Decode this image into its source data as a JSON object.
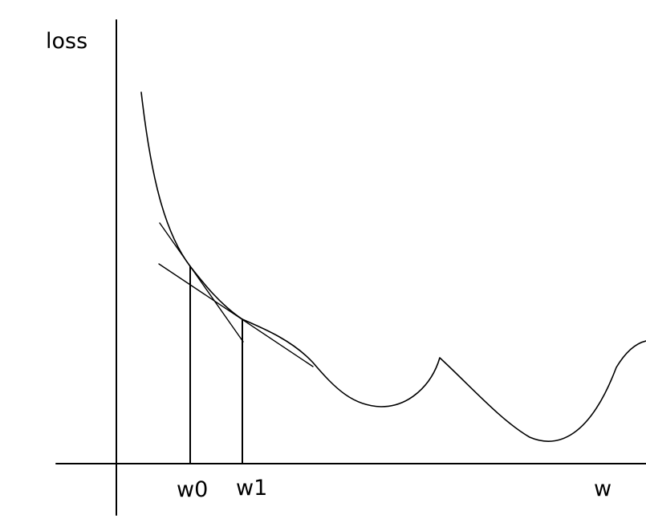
{
  "diagram": {
    "y_axis_label": "loss",
    "x_axis_label": "w",
    "markers": [
      {
        "label": "w0"
      },
      {
        "label": "w1"
      }
    ]
  },
  "colors": {
    "stroke": "#000000",
    "background": "#ffffff"
  }
}
